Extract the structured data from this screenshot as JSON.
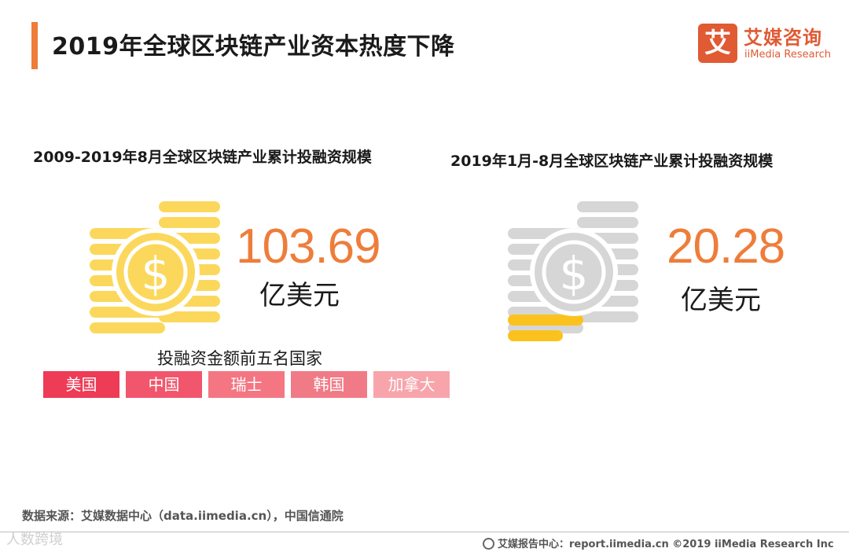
{
  "page": {
    "title": "2019年全球区块链产业资本热度下降"
  },
  "logo": {
    "mark": "艾",
    "cn": "艾媒咨询",
    "en": "iiMedia Research"
  },
  "chart_data": [
    {
      "type": "table",
      "title": "2009-2019年8月全球区块链产业累计投融资规模",
      "value": 103.69,
      "value_text": "103.69",
      "unit": "亿美元",
      "icon": "coin-stack-icon",
      "icon_color": "#fbd85c",
      "top5": {
        "label": "投融资金额前五名国家",
        "countries": [
          "美国",
          "中国",
          "瑞士",
          "韩国",
          "加拿大"
        ],
        "colors": [
          "#ee3b56",
          "#f2566c",
          "#f47683",
          "#f07b86",
          "#f7a5ab"
        ]
      }
    },
    {
      "type": "table",
      "title": "2019年1月-8月全球区块链产业累计投融资规模",
      "value": 20.28,
      "value_text": "20.28",
      "unit": "亿美元",
      "icon": "coin-stack-icon",
      "icon_color": "#d6d6d6",
      "highlight_color": "#fbc21e"
    }
  ],
  "colors": {
    "accent": "#ee7d3a",
    "brand": "#e05a34"
  },
  "footer": {
    "source": "数据来源：艾媒数据中心（data.iimedia.cn），中国信通院",
    "watermark": "人数跨境",
    "report": "艾媒报告中心：report.iimedia.cn ©2019 iiMedia Research Inc"
  }
}
